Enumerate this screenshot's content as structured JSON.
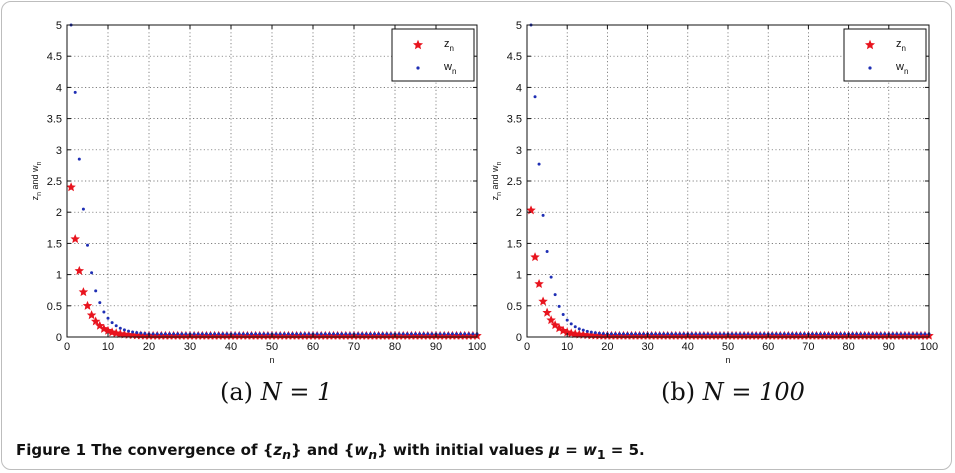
{
  "chart_data": [
    {
      "type": "scatter",
      "subcaption_label": "(a)",
      "subcaption_math": "N = 1",
      "xlabel": "n",
      "ylabel_main": "z",
      "ylabel_sub": "n",
      "ylabel_mid": " and w",
      "ylabel_sub2": "n",
      "xlim": [
        0,
        100
      ],
      "ylim": [
        0,
        5
      ],
      "xticks": [
        0,
        10,
        20,
        30,
        40,
        50,
        60,
        70,
        80,
        90,
        100
      ],
      "yticks": [
        0,
        0.5,
        1,
        1.5,
        2,
        2.5,
        3,
        3.5,
        4,
        4.5,
        5
      ],
      "grid": true,
      "legend_position": "top-right",
      "series": [
        {
          "name": "z",
          "name_sub": "n",
          "marker": "star",
          "color": "#e8141e",
          "x": [
            1,
            2,
            3,
            4,
            5,
            6,
            7,
            8,
            9,
            10,
            11,
            12,
            13,
            14,
            15,
            16,
            17,
            18,
            19,
            20,
            21,
            22,
            23,
            24,
            25,
            26,
            27,
            28,
            29,
            30,
            31,
            32,
            33,
            34,
            35,
            36,
            37,
            38,
            39,
            40,
            41,
            42,
            43,
            44,
            45,
            46,
            47,
            48,
            49,
            50,
            51,
            52,
            53,
            54,
            55,
            56,
            57,
            58,
            59,
            60,
            61,
            62,
            63,
            64,
            65,
            66,
            67,
            68,
            69,
            70,
            71,
            72,
            73,
            74,
            75,
            76,
            77,
            78,
            79,
            80,
            81,
            82,
            83,
            84,
            85,
            86,
            87,
            88,
            89,
            90,
            91,
            92,
            93,
            94,
            95,
            96,
            97,
            98,
            99,
            100
          ],
          "y": [
            2.4,
            1.57,
            1.06,
            0.72,
            0.5,
            0.35,
            0.25,
            0.18,
            0.13,
            0.1,
            0.075,
            0.06,
            0.048,
            0.04,
            0.034,
            0.03,
            0.027,
            0.024,
            0.022,
            0.02,
            0.02,
            0.02,
            0.02,
            0.02,
            0.02,
            0.02,
            0.02,
            0.02,
            0.02,
            0.02,
            0.02,
            0.02,
            0.02,
            0.02,
            0.02,
            0.02,
            0.02,
            0.02,
            0.02,
            0.02,
            0.02,
            0.02,
            0.02,
            0.02,
            0.02,
            0.02,
            0.02,
            0.02,
            0.02,
            0.02,
            0.02,
            0.02,
            0.02,
            0.02,
            0.02,
            0.02,
            0.02,
            0.02,
            0.02,
            0.02,
            0.02,
            0.02,
            0.02,
            0.02,
            0.02,
            0.02,
            0.02,
            0.02,
            0.02,
            0.02,
            0.02,
            0.02,
            0.02,
            0.02,
            0.02,
            0.02,
            0.02,
            0.02,
            0.02,
            0.02,
            0.02,
            0.02,
            0.02,
            0.02,
            0.02,
            0.02,
            0.02,
            0.02,
            0.02,
            0.02,
            0.02,
            0.02,
            0.02,
            0.02,
            0.02,
            0.02,
            0.02,
            0.02,
            0.02,
            0.02
          ]
        },
        {
          "name": "w",
          "name_sub": "n",
          "marker": "dot",
          "color": "#1f2fb4",
          "x": [
            1,
            2,
            3,
            4,
            5,
            6,
            7,
            8,
            9,
            10,
            11,
            12,
            13,
            14,
            15,
            16,
            17,
            18,
            19,
            20,
            21,
            22,
            23,
            24,
            25,
            26,
            27,
            28,
            29,
            30,
            31,
            32,
            33,
            34,
            35,
            36,
            37,
            38,
            39,
            40,
            41,
            42,
            43,
            44,
            45,
            46,
            47,
            48,
            49,
            50,
            51,
            52,
            53,
            54,
            55,
            56,
            57,
            58,
            59,
            60,
            61,
            62,
            63,
            64,
            65,
            66,
            67,
            68,
            69,
            70,
            71,
            72,
            73,
            74,
            75,
            76,
            77,
            78,
            79,
            80,
            81,
            82,
            83,
            84,
            85,
            86,
            87,
            88,
            89,
            90,
            91,
            92,
            93,
            94,
            95,
            96,
            97,
            98,
            99,
            100
          ],
          "y": [
            5.0,
            3.92,
            2.85,
            2.05,
            1.47,
            1.03,
            0.74,
            0.55,
            0.4,
            0.3,
            0.23,
            0.18,
            0.14,
            0.115,
            0.095,
            0.08,
            0.07,
            0.062,
            0.056,
            0.05,
            0.05,
            0.05,
            0.05,
            0.05,
            0.05,
            0.05,
            0.05,
            0.05,
            0.05,
            0.05,
            0.05,
            0.05,
            0.05,
            0.05,
            0.05,
            0.05,
            0.05,
            0.05,
            0.05,
            0.05,
            0.05,
            0.05,
            0.05,
            0.05,
            0.05,
            0.05,
            0.05,
            0.05,
            0.05,
            0.05,
            0.05,
            0.05,
            0.05,
            0.05,
            0.05,
            0.05,
            0.05,
            0.05,
            0.05,
            0.05,
            0.05,
            0.05,
            0.05,
            0.05,
            0.05,
            0.05,
            0.05,
            0.05,
            0.05,
            0.05,
            0.05,
            0.05,
            0.05,
            0.05,
            0.05,
            0.05,
            0.05,
            0.05,
            0.05,
            0.05,
            0.05,
            0.05,
            0.05,
            0.05,
            0.05,
            0.05,
            0.05,
            0.05,
            0.05,
            0.05,
            0.05,
            0.05,
            0.05,
            0.05,
            0.05,
            0.05,
            0.05,
            0.05,
            0.05,
            0.05
          ]
        }
      ]
    },
    {
      "type": "scatter",
      "subcaption_label": "(b)",
      "subcaption_math": "N = 100",
      "xlabel": "n",
      "ylabel_main": "z",
      "ylabel_sub": "n",
      "ylabel_mid": " and w",
      "ylabel_sub2": "n",
      "xlim": [
        0,
        100
      ],
      "ylim": [
        0,
        5
      ],
      "xticks": [
        0,
        10,
        20,
        30,
        40,
        50,
        60,
        70,
        80,
        90,
        100
      ],
      "yticks": [
        0,
        0.5,
        1,
        1.5,
        2,
        2.5,
        3,
        3.5,
        4,
        4.5,
        5
      ],
      "grid": true,
      "legend_position": "top-right",
      "series": [
        {
          "name": "z",
          "name_sub": "n",
          "marker": "star",
          "color": "#e8141e",
          "x": [
            1,
            2,
            3,
            4,
            5,
            6,
            7,
            8,
            9,
            10,
            11,
            12,
            13,
            14,
            15,
            16,
            17,
            18,
            19,
            20,
            21,
            22,
            23,
            24,
            25,
            26,
            27,
            28,
            29,
            30,
            31,
            32,
            33,
            34,
            35,
            36,
            37,
            38,
            39,
            40,
            41,
            42,
            43,
            44,
            45,
            46,
            47,
            48,
            49,
            50,
            51,
            52,
            53,
            54,
            55,
            56,
            57,
            58,
            59,
            60,
            61,
            62,
            63,
            64,
            65,
            66,
            67,
            68,
            69,
            70,
            71,
            72,
            73,
            74,
            75,
            76,
            77,
            78,
            79,
            80,
            81,
            82,
            83,
            84,
            85,
            86,
            87,
            88,
            89,
            90,
            91,
            92,
            93,
            94,
            95,
            96,
            97,
            98,
            99,
            100
          ],
          "y": [
            2.03,
            1.28,
            0.85,
            0.57,
            0.39,
            0.27,
            0.19,
            0.14,
            0.1,
            0.075,
            0.058,
            0.047,
            0.04,
            0.034,
            0.03,
            0.027,
            0.024,
            0.022,
            0.02,
            0.02,
            0.02,
            0.02,
            0.02,
            0.02,
            0.02,
            0.02,
            0.02,
            0.02,
            0.02,
            0.02,
            0.02,
            0.02,
            0.02,
            0.02,
            0.02,
            0.02,
            0.02,
            0.02,
            0.02,
            0.02,
            0.02,
            0.02,
            0.02,
            0.02,
            0.02,
            0.02,
            0.02,
            0.02,
            0.02,
            0.02,
            0.02,
            0.02,
            0.02,
            0.02,
            0.02,
            0.02,
            0.02,
            0.02,
            0.02,
            0.02,
            0.02,
            0.02,
            0.02,
            0.02,
            0.02,
            0.02,
            0.02,
            0.02,
            0.02,
            0.02,
            0.02,
            0.02,
            0.02,
            0.02,
            0.02,
            0.02,
            0.02,
            0.02,
            0.02,
            0.02,
            0.02,
            0.02,
            0.02,
            0.02,
            0.02,
            0.02,
            0.02,
            0.02,
            0.02,
            0.02,
            0.02,
            0.02,
            0.02,
            0.02,
            0.02,
            0.02,
            0.02,
            0.02,
            0.02,
            0.02
          ]
        },
        {
          "name": "w",
          "name_sub": "n",
          "marker": "dot",
          "color": "#1f2fb4",
          "x": [
            1,
            2,
            3,
            4,
            5,
            6,
            7,
            8,
            9,
            10,
            11,
            12,
            13,
            14,
            15,
            16,
            17,
            18,
            19,
            20,
            21,
            22,
            23,
            24,
            25,
            26,
            27,
            28,
            29,
            30,
            31,
            32,
            33,
            34,
            35,
            36,
            37,
            38,
            39,
            40,
            41,
            42,
            43,
            44,
            45,
            46,
            47,
            48,
            49,
            50,
            51,
            52,
            53,
            54,
            55,
            56,
            57,
            58,
            59,
            60,
            61,
            62,
            63,
            64,
            65,
            66,
            67,
            68,
            69,
            70,
            71,
            72,
            73,
            74,
            75,
            76,
            77,
            78,
            79,
            80,
            81,
            82,
            83,
            84,
            85,
            86,
            87,
            88,
            89,
            90,
            91,
            92,
            93,
            94,
            95,
            96,
            97,
            98,
            99,
            100
          ],
          "y": [
            5.0,
            3.85,
            2.77,
            1.95,
            1.37,
            0.96,
            0.68,
            0.49,
            0.36,
            0.27,
            0.21,
            0.165,
            0.13,
            0.11,
            0.09,
            0.078,
            0.068,
            0.06,
            0.055,
            0.05,
            0.05,
            0.05,
            0.05,
            0.05,
            0.05,
            0.05,
            0.05,
            0.05,
            0.05,
            0.05,
            0.05,
            0.05,
            0.05,
            0.05,
            0.05,
            0.05,
            0.05,
            0.05,
            0.05,
            0.05,
            0.05,
            0.05,
            0.05,
            0.05,
            0.05,
            0.05,
            0.05,
            0.05,
            0.05,
            0.05,
            0.05,
            0.05,
            0.05,
            0.05,
            0.05,
            0.05,
            0.05,
            0.05,
            0.05,
            0.05,
            0.05,
            0.05,
            0.05,
            0.05,
            0.05,
            0.05,
            0.05,
            0.05,
            0.05,
            0.05,
            0.05,
            0.05,
            0.05,
            0.05,
            0.05,
            0.05,
            0.05,
            0.05,
            0.05,
            0.05,
            0.05,
            0.05,
            0.05,
            0.05,
            0.05,
            0.05,
            0.05,
            0.05,
            0.05,
            0.05,
            0.05,
            0.05,
            0.05,
            0.05,
            0.05,
            0.05,
            0.05,
            0.05,
            0.05,
            0.05
          ]
        }
      ]
    }
  ],
  "caption": {
    "prefix": "Figure 1  The convergence of {",
    "z": "z",
    "z_sub": "n",
    "mid": "} and {",
    "w": "w",
    "w_sub": "n",
    "mid2": "} with initial values ",
    "mu": "μ",
    "eq1": " = ",
    "w1": "w",
    "w1_sub": "1",
    "eq2": " = 5."
  }
}
